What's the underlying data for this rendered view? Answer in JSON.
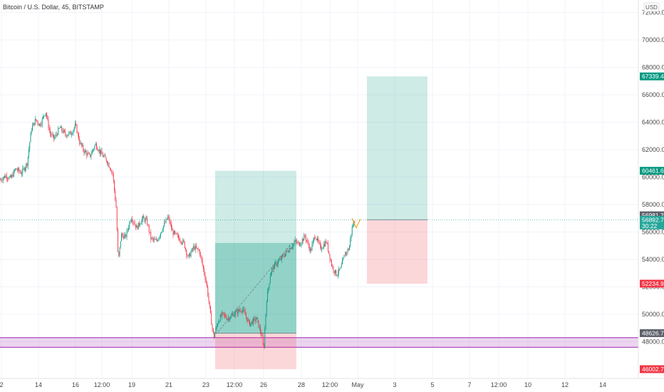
{
  "chart_data": {
    "type": "candlestick",
    "title": "Bitcoin / U.S. Dollar, 45, BITSTAMP",
    "currency": "USD",
    "ylim": [
      45800,
      73000
    ],
    "price_ticks": [
      48000,
      50000,
      52000,
      54000,
      56000,
      58000,
      60000,
      62000,
      64000,
      66000,
      68000,
      70000,
      72000
    ],
    "time_ticks": [
      "2",
      "14",
      "16",
      "12:00",
      "19",
      "21",
      "23",
      "12:00",
      "26",
      "28",
      "12:00",
      "May",
      "3",
      "5",
      "7",
      "12:00",
      "10",
      "12",
      "14"
    ],
    "price_tags": [
      {
        "value": "67339.43",
        "color": "#089981"
      },
      {
        "value": "60461.68",
        "color": "#089981"
      },
      {
        "value": "56981.21",
        "color": "#5d606b"
      },
      {
        "value": "56892.78",
        "sub": "30:22",
        "color": "#26a69a"
      },
      {
        "value": "52234.94",
        "color": "#f23645"
      },
      {
        "value": "48626.79",
        "color": "#5d606b"
      },
      {
        "value": "46002.75",
        "color": "#f23645"
      }
    ],
    "price_path": [
      [
        0,
        59800
      ],
      [
        8,
        60100
      ],
      [
        15,
        59900
      ],
      [
        22,
        60600
      ],
      [
        30,
        60300
      ],
      [
        38,
        61000
      ],
      [
        44,
        63500
      ],
      [
        50,
        64200
      ],
      [
        56,
        63800
      ],
      [
        64,
        64800
      ],
      [
        70,
        63200
      ],
      [
        76,
        62800
      ],
      [
        84,
        63600
      ],
      [
        92,
        63100
      ],
      [
        100,
        63200
      ],
      [
        106,
        63800
      ],
      [
        112,
        62500
      ],
      [
        118,
        61900
      ],
      [
        126,
        61500
      ],
      [
        134,
        62400
      ],
      [
        142,
        61700
      ],
      [
        150,
        61200
      ],
      [
        158,
        60300
      ],
      [
        163,
        57800
      ],
      [
        166,
        53800
      ],
      [
        170,
        55800
      ],
      [
        176,
        55600
      ],
      [
        184,
        57100
      ],
      [
        192,
        56300
      ],
      [
        200,
        57000
      ],
      [
        206,
        56800
      ],
      [
        212,
        55500
      ],
      [
        220,
        55300
      ],
      [
        228,
        56300
      ],
      [
        236,
        57100
      ],
      [
        242,
        56000
      ],
      [
        250,
        55600
      ],
      [
        258,
        55200
      ],
      [
        264,
        54100
      ],
      [
        272,
        54900
      ],
      [
        280,
        54600
      ],
      [
        290,
        52200
      ],
      [
        296,
        49700
      ],
      [
        300,
        48300
      ],
      [
        306,
        49500
      ],
      [
        312,
        50000
      ],
      [
        320,
        49700
      ],
      [
        330,
        50100
      ],
      [
        340,
        50400
      ],
      [
        350,
        49300
      ],
      [
        360,
        49700
      ],
      [
        368,
        48300
      ],
      [
        370,
        47300
      ],
      [
        374,
        51000
      ],
      [
        380,
        53100
      ],
      [
        386,
        53600
      ],
      [
        392,
        53900
      ],
      [
        400,
        54400
      ],
      [
        408,
        54900
      ],
      [
        414,
        55300
      ],
      [
        420,
        55100
      ],
      [
        428,
        55700
      ],
      [
        436,
        54600
      ],
      [
        442,
        55800
      ],
      [
        450,
        54800
      ],
      [
        458,
        55300
      ],
      [
        466,
        53500
      ],
      [
        472,
        52900
      ],
      [
        478,
        53300
      ],
      [
        484,
        54400
      ],
      [
        490,
        54800
      ],
      [
        494,
        56300
      ],
      [
        498,
        56800
      ]
    ],
    "positions": [
      {
        "type": "long",
        "entry": 48626.79,
        "target": 60461.68,
        "stop": 46002.75,
        "start": "23",
        "end": "28"
      },
      {
        "type": "short",
        "entry": 56892.78,
        "target": 67339.43,
        "stop": 52234.94,
        "start": "May",
        "end": "5"
      }
    ],
    "support_zone": [
      47600,
      48300
    ]
  }
}
